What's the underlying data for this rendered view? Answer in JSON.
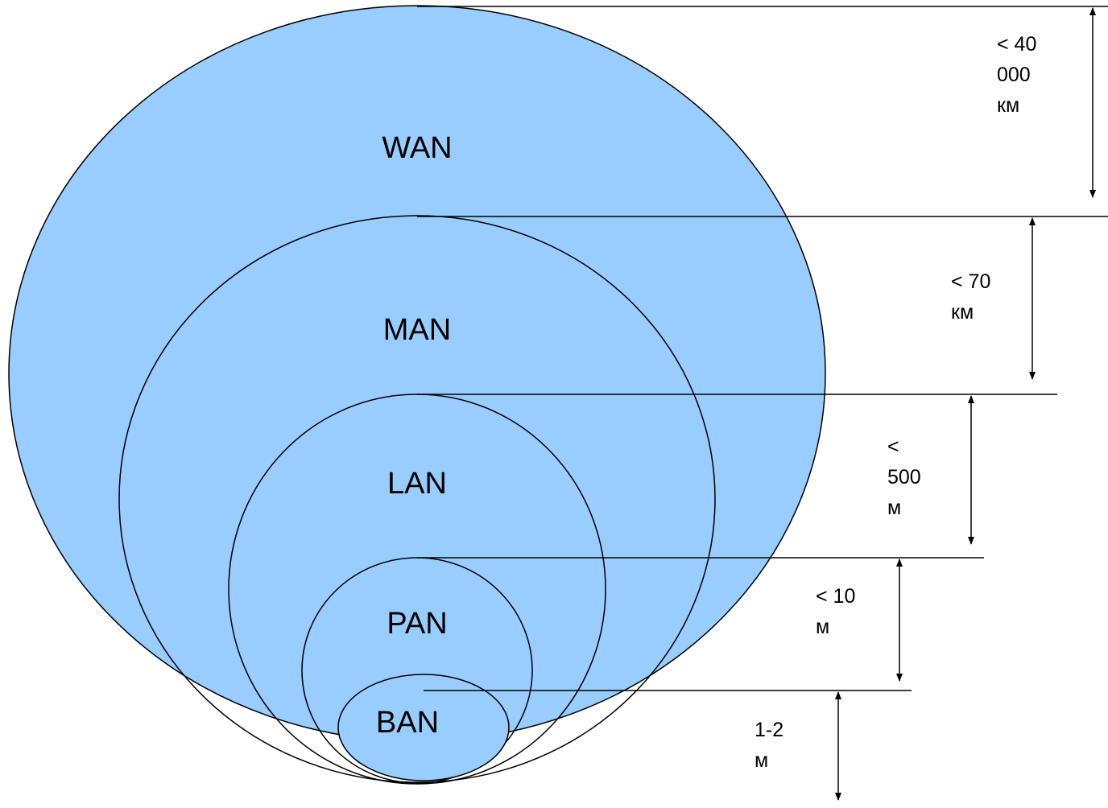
{
  "colors": {
    "fill": "#99CCFF",
    "stroke": "#000000"
  },
  "networks": [
    {
      "id": "wan",
      "label": "WAN"
    },
    {
      "id": "man",
      "label": "MAN"
    },
    {
      "id": "lan",
      "label": "LAN"
    },
    {
      "id": "pan",
      "label": "PAN"
    },
    {
      "id": "ban",
      "label": "BAN"
    }
  ],
  "ranges": [
    {
      "id": "wan",
      "lines": [
        "< 40",
        "000",
        "км"
      ]
    },
    {
      "id": "man",
      "lines": [
        "< 70",
        "км"
      ]
    },
    {
      "id": "lan",
      "lines": [
        "<",
        "500",
        "м"
      ]
    },
    {
      "id": "pan",
      "lines": [
        "< 10",
        "м"
      ]
    },
    {
      "id": "ban",
      "lines": [
        "1-2",
        "м"
      ]
    }
  ]
}
